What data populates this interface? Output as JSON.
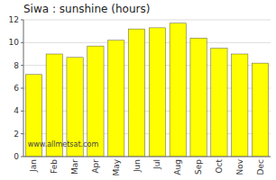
{
  "chart_data": {
    "type": "bar",
    "title": "Siwa : sunshine (hours)",
    "categories": [
      "Jan",
      "Feb",
      "Mar",
      "Apr",
      "May",
      "Jun",
      "Jul",
      "Aug",
      "Sep",
      "Oct",
      "Nov",
      "Dec"
    ],
    "values": [
      7.2,
      9.0,
      8.7,
      9.7,
      10.2,
      11.2,
      11.3,
      11.7,
      10.4,
      9.5,
      9.0,
      8.2
    ],
    "color": "#FFFF00",
    "ylim": [
      0,
      12
    ],
    "yticks": [
      0,
      2,
      4,
      6,
      8,
      10,
      12
    ],
    "grid": true,
    "annotations": [
      "www.allmetsat.com"
    ]
  }
}
